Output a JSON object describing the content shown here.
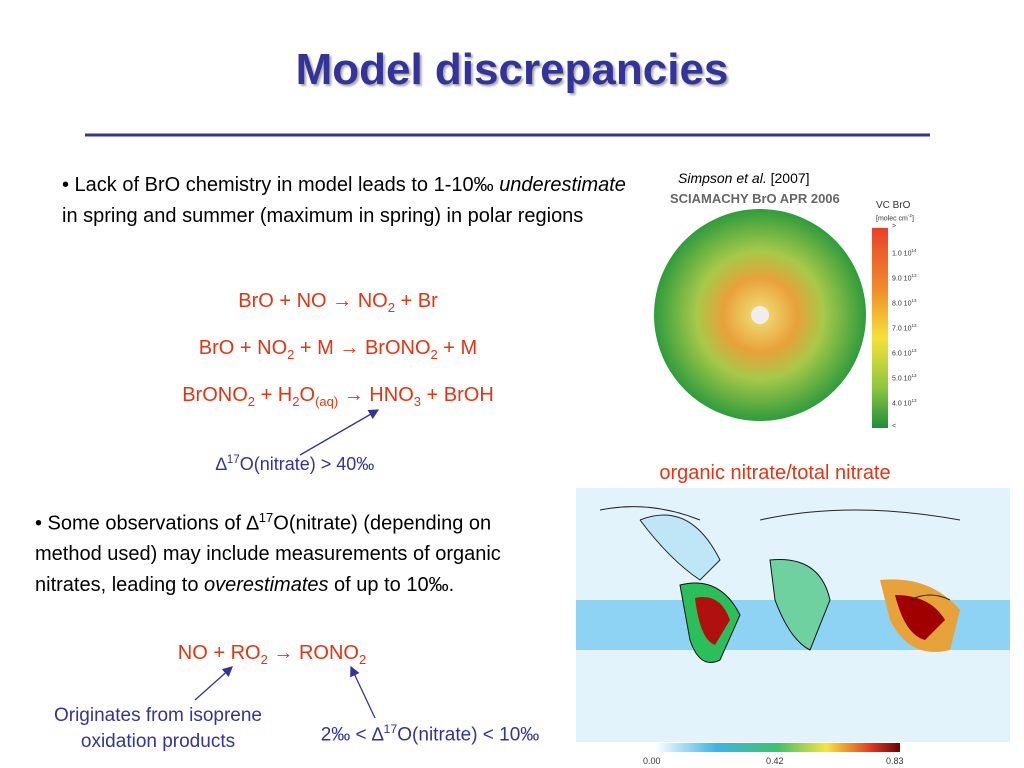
{
  "title": "Model discrepancies",
  "bullets": [
    {
      "parts": [
        "• Lack of BrO chemistry in model leads to 1-10‰ ",
        {
          "em": "underestimate"
        },
        " in spring and summer (maximum in spring) in polar regions"
      ]
    },
    {
      "parts": [
        "• Some observations of ∆",
        {
          "sup": "17"
        },
        "O(nitrate) (depending on method used) may include measurements of organic nitrates, leading to ",
        {
          "em": "overestimates"
        },
        " of up to 10‰."
      ]
    }
  ],
  "equations": [
    [
      "BrO + NO ",
      "→",
      " NO",
      {
        "sub": "2"
      },
      " + Br"
    ],
    [
      "BrO + NO",
      {
        "sub": "2"
      },
      " + M ",
      "→",
      " BrONO",
      {
        "sub": "2"
      },
      " + M"
    ],
    [
      "BrONO",
      {
        "sub": "2"
      },
      " + H",
      {
        "sub": "2"
      },
      "O",
      {
        "sub": "(aq)"
      },
      " ",
      "→",
      " HNO",
      {
        "sub": "3"
      },
      " + BrOH"
    ]
  ],
  "note_bro": [
    "∆",
    {
      "sup": "17"
    },
    "O(nitrate) > 40‰"
  ],
  "equation_organic": [
    "NO + RO",
    {
      "sub": "2"
    },
    " ",
    "→",
    " RONO",
    {
      "sub": "2"
    }
  ],
  "note_isoprene": [
    "Originates from isoprene",
    "oxidation products"
  ],
  "note_range": [
    "2‰ < ∆",
    {
      "sup": "17"
    },
    "O(nitrate) < 10‰"
  ],
  "figure_bro": {
    "citation": [
      {
        "em": "Simpson et al."
      },
      " [2007]"
    ],
    "title": "SCIAMACHY BrO APR 2006",
    "scale_title": "VC BrO",
    "scale_unit": [
      "[molec cm",
      {
        "sup": "-2"
      },
      "]"
    ],
    "scale_labels": [
      [
        ">"
      ],
      [
        "1.0 10",
        {
          "sup": "14"
        }
      ],
      [
        "9.0 10",
        {
          "sup": "13"
        }
      ],
      [
        "8.0 10",
        {
          "sup": "13"
        }
      ],
      [
        "7.0 10",
        {
          "sup": "13"
        }
      ],
      [
        "6.0 10",
        {
          "sup": "13"
        }
      ],
      [
        "5.0 10",
        {
          "sup": "13"
        }
      ],
      [
        "4.0 10",
        {
          "sup": "13"
        }
      ],
      [
        "<"
      ]
    ]
  },
  "figure_nitrate": {
    "caption": "organic nitrate/total nitrate",
    "scale_labels": [
      "0.00",
      "0.42",
      "0.83"
    ]
  }
}
